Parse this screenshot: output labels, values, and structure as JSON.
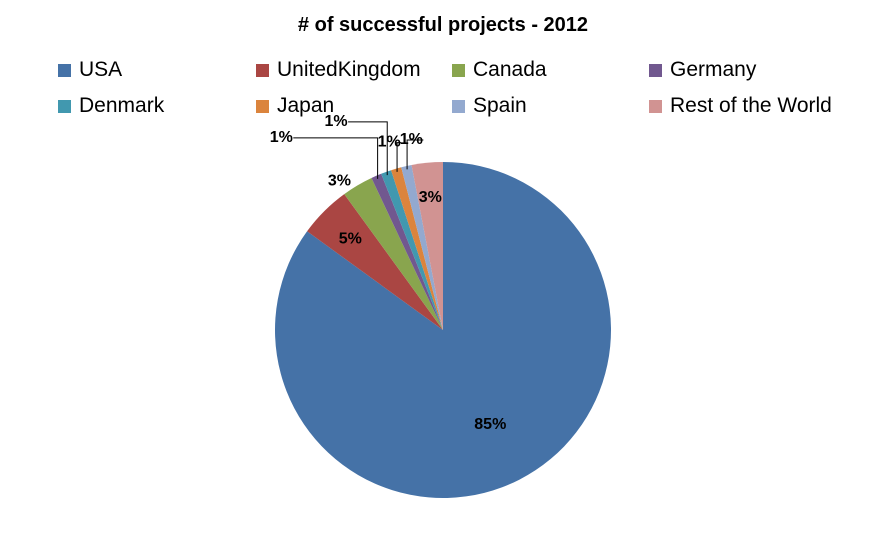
{
  "chart_data": {
    "type": "pie",
    "title": "# of successful projects - 2012",
    "legend_position": "top",
    "slices": [
      {
        "name": "USA",
        "value": 85,
        "label": "85%",
        "color": "#4572A7"
      },
      {
        "name": "UnitedKingdom",
        "value": 5,
        "label": "5%",
        "color": "#AA4643"
      },
      {
        "name": "Canada",
        "value": 3,
        "label": "3%",
        "color": "#89A54E"
      },
      {
        "name": "Germany",
        "value": 1,
        "label": "1%",
        "color": "#71588F"
      },
      {
        "name": "Denmark",
        "value": 1,
        "label": "1%",
        "color": "#4198AF"
      },
      {
        "name": "Japan",
        "value": 1,
        "label": "1%",
        "color": "#DB843D"
      },
      {
        "name": "Spain",
        "value": 1,
        "label": "1%",
        "color": "#93A9CF"
      },
      {
        "name": "Rest of the World",
        "value": 3,
        "label": "3%",
        "color": "#D19392"
      }
    ]
  }
}
